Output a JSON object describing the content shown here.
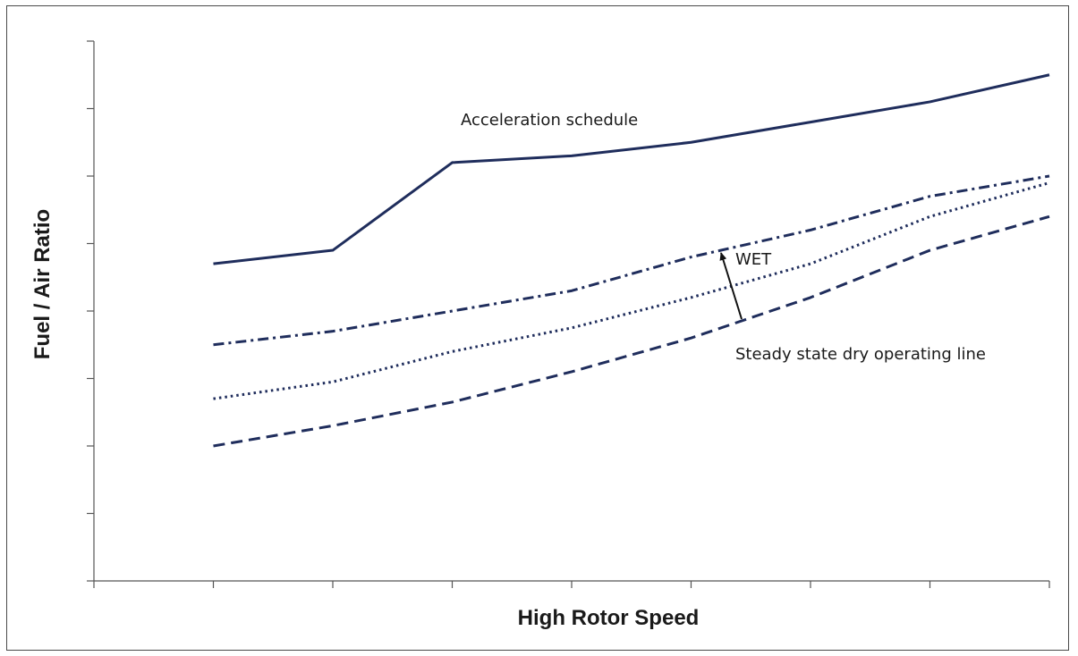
{
  "chart_data": {
    "type": "line",
    "title": "",
    "xlabel": "High Rotor Speed",
    "ylabel": "Fuel / Air Ratio",
    "x": [
      1,
      2,
      3,
      4,
      5,
      6,
      7,
      8
    ],
    "xlim": [
      0,
      8
    ],
    "ylim": [
      0,
      8
    ],
    "grid": false,
    "series": [
      {
        "key": "accel",
        "style": "solid",
        "color": "#1f2d5c",
        "values": [
          4.7,
          4.9,
          6.2,
          6.3,
          6.5,
          6.8,
          7.1,
          7.5
        ]
      },
      {
        "key": "wet_upper",
        "style": "dashdot",
        "color": "#1f2d5c",
        "values": [
          3.5,
          3.7,
          4.0,
          4.3,
          4.8,
          5.2,
          5.7,
          6.0
        ]
      },
      {
        "key": "wet_mid",
        "style": "dotted",
        "color": "#1f2d5c",
        "values": [
          2.7,
          2.95,
          3.4,
          3.75,
          4.2,
          4.7,
          5.4,
          5.9
        ]
      },
      {
        "key": "dry",
        "style": "dashed",
        "color": "#1f2d5c",
        "values": [
          2.0,
          2.3,
          2.65,
          3.1,
          3.6,
          4.2,
          4.9,
          5.4
        ]
      }
    ],
    "annotations": {
      "acceleration_schedule": "Acceleration schedule",
      "wet": "WET",
      "steady_state": "Steady state dry operating line"
    }
  }
}
